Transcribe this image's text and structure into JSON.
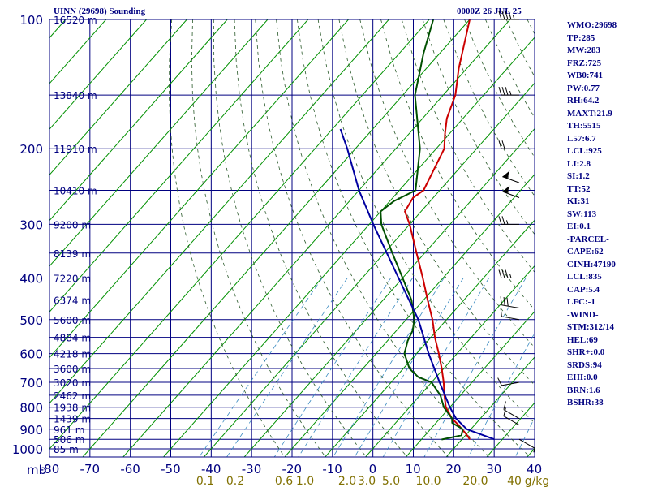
{
  "header": {
    "title": "UINN (29698) Sounding",
    "valid_time": "0000Z 26 JUL 25"
  },
  "stats": [
    "WMO:29698",
    "TP:285",
    "MW:283",
    "FRZ:725",
    "WB0:741",
    "PW:0.77",
    "RH:64.2",
    "MAXT:21.9",
    "TH:5515",
    "L57:6.7",
    "LCL:925",
    "LI:2.8",
    "SI:1.2",
    "TT:52",
    "KI:31",
    "SW:113",
    "EI:0.1",
    "-PARCEL-",
    "CAPE:62",
    "CINH:47190",
    "LCL:835",
    "CAP:5.4",
    "LFC:-1",
    "-WIND-",
    "STM:312/14",
    "HEL:69",
    "SHR+:0.0",
    "SRDS:94",
    "EHI:0.0",
    "BRN:1.6",
    "BSHR:38"
  ],
  "colors": {
    "grid": "#000080",
    "isotherm": "#009000",
    "temperature": "#cc0000",
    "dewpoint": "#005000",
    "parcel": "#0000a0",
    "dry_adiabat": "#2a5a2a",
    "mixing_ratio": "#3a8ac0",
    "wind_barb": "#000000",
    "labels": "#000080"
  },
  "chart_data": {
    "type": "skew-t",
    "title": "UINN (29698) Sounding",
    "x_unit_label": "mb",
    "temp_ticks": [
      -80,
      -70,
      -60,
      -50,
      -40,
      -30,
      -20,
      -10,
      0,
      10,
      20,
      30,
      40
    ],
    "xlim": [
      -80,
      40
    ],
    "pressure_ticks": [
      100,
      200,
      300,
      400,
      500,
      600,
      700,
      800,
      900,
      1000
    ],
    "ylim_mb": [
      100,
      1050
    ],
    "log_pressure": true,
    "height_labels": [
      {
        "p": 100,
        "label": "16520 m"
      },
      {
        "p": 150,
        "label": "13840 m"
      },
      {
        "p": 200,
        "label": "11910 m"
      },
      {
        "p": 250,
        "label": "10410 m"
      },
      {
        "p": 300,
        "label": "9200 m"
      },
      {
        "p": 350,
        "label": "8139 m"
      },
      {
        "p": 400,
        "label": "7220 m"
      },
      {
        "p": 450,
        "label": "6374 m"
      },
      {
        "p": 500,
        "label": "5600 m"
      },
      {
        "p": 550,
        "label": "4884 m"
      },
      {
        "p": 600,
        "label": "4218 m"
      },
      {
        "p": 650,
        "label": "3600 m"
      },
      {
        "p": 700,
        "label": "3020 m"
      },
      {
        "p": 750,
        "label": "2462 m"
      },
      {
        "p": 800,
        "label": "1938 m"
      },
      {
        "p": 850,
        "label": "1439 m"
      },
      {
        "p": 900,
        "label": "961 m"
      },
      {
        "p": 950,
        "label": "506 m"
      },
      {
        "p": 1000,
        "label": "85 m"
      }
    ],
    "mixing_ratio_labels": [
      "0.1",
      "0.2",
      "0.6",
      "1.0",
      "2.0",
      "3.0",
      "5.0",
      "10.0",
      "20.0",
      "40",
      "g/kg"
    ],
    "series": [
      {
        "name": "temperature",
        "points": [
          {
            "p": 951,
            "t": 22
          },
          {
            "p": 925,
            "t": 20
          },
          {
            "p": 880,
            "t": 16
          },
          {
            "p": 850,
            "t": 13
          },
          {
            "p": 800,
            "t": 9
          },
          {
            "p": 750,
            "t": 6
          },
          {
            "p": 700,
            "t": 3
          },
          {
            "p": 650,
            "t": -0.5
          },
          {
            "p": 600,
            "t": -4.5
          },
          {
            "p": 550,
            "t": -9
          },
          {
            "p": 500,
            "t": -13.5
          },
          {
            "p": 450,
            "t": -19
          },
          {
            "p": 400,
            "t": -25
          },
          {
            "p": 350,
            "t": -32
          },
          {
            "p": 300,
            "t": -40
          },
          {
            "p": 280,
            "t": -44
          },
          {
            "p": 260,
            "t": -45
          },
          {
            "p": 250,
            "t": -44
          },
          {
            "p": 200,
            "t": -48
          },
          {
            "p": 185,
            "t": -51
          },
          {
            "p": 170,
            "t": -54
          },
          {
            "p": 150,
            "t": -57
          },
          {
            "p": 130,
            "t": -62
          },
          {
            "p": 100,
            "t": -70
          }
        ]
      },
      {
        "name": "dewpoint",
        "points": [
          {
            "p": 951,
            "t": 15
          },
          {
            "p": 930,
            "t": 19
          },
          {
            "p": 900,
            "t": 18
          },
          {
            "p": 870,
            "t": 14
          },
          {
            "p": 850,
            "t": 13
          },
          {
            "p": 800,
            "t": 8.5
          },
          {
            "p": 750,
            "t": 5
          },
          {
            "p": 700,
            "t": 0
          },
          {
            "p": 680,
            "t": -4.5
          },
          {
            "p": 650,
            "t": -8.5
          },
          {
            "p": 600,
            "t": -13
          },
          {
            "p": 560,
            "t": -15
          },
          {
            "p": 530,
            "t": -16
          },
          {
            "p": 500,
            "t": -18
          },
          {
            "p": 450,
            "t": -23
          },
          {
            "p": 400,
            "t": -30
          },
          {
            "p": 350,
            "t": -38
          },
          {
            "p": 300,
            "t": -47
          },
          {
            "p": 280,
            "t": -50
          },
          {
            "p": 265,
            "t": -49
          },
          {
            "p": 250,
            "t": -46
          },
          {
            "p": 200,
            "t": -54
          },
          {
            "p": 150,
            "t": -67
          },
          {
            "p": 120,
            "t": -74
          },
          {
            "p": 100,
            "t": -79
          }
        ]
      },
      {
        "name": "parcel",
        "points": [
          {
            "p": 950,
            "t": 28
          },
          {
            "p": 900,
            "t": 19
          },
          {
            "p": 850,
            "t": 14
          },
          {
            "p": 800,
            "t": 10
          },
          {
            "p": 700,
            "t": 2
          },
          {
            "p": 600,
            "t": -7
          },
          {
            "p": 500,
            "t": -17
          },
          {
            "p": 400,
            "t": -31
          },
          {
            "p": 300,
            "t": -49
          },
          {
            "p": 250,
            "t": -60
          },
          {
            "p": 200,
            "t": -72
          },
          {
            "p": 180,
            "t": -78
          }
        ]
      }
    ],
    "wind_barbs": [
      {
        "p": 100,
        "dir": 270,
        "spd": 45
      },
      {
        "p": 150,
        "dir": 270,
        "spd": 35
      },
      {
        "p": 200,
        "dir": 270,
        "spd": 20
      },
      {
        "p": 240,
        "dir": 290,
        "spd": 55
      },
      {
        "p": 260,
        "dir": 290,
        "spd": 55
      },
      {
        "p": 300,
        "dir": 270,
        "spd": 25
      },
      {
        "p": 400,
        "dir": 270,
        "spd": 35
      },
      {
        "p": 470,
        "dir": 280,
        "spd": 30
      },
      {
        "p": 500,
        "dir": 280,
        "spd": 10
      },
      {
        "p": 700,
        "dir": 260,
        "spd": 10
      },
      {
        "p": 850,
        "dir": 300,
        "spd": 10
      },
      {
        "p": 880,
        "dir": 300,
        "spd": 10
      },
      {
        "p": 950,
        "dir": 120,
        "spd": 5
      }
    ]
  }
}
